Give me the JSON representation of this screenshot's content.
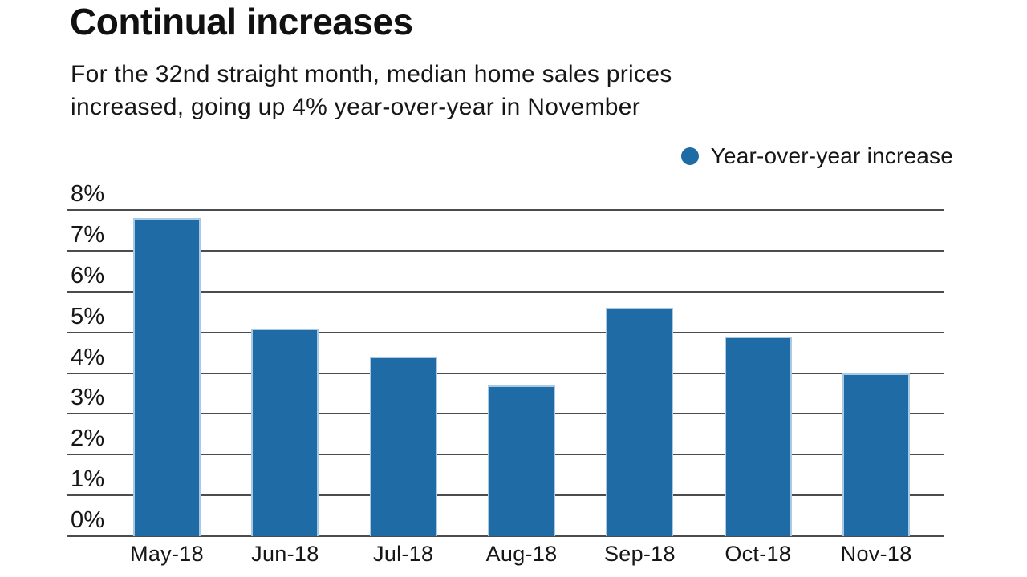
{
  "page": {
    "title": "Continual increases",
    "subtitle_lines": [
      "For the 32nd straight month, median home sales prices",
      "increased, going up 4% year-over-year in November"
    ]
  },
  "legend": {
    "label": "Year-over-year increase",
    "marker": "circle-icon"
  },
  "colors": {
    "bar": "#1e6ba5",
    "bar_edge": "#a9cae2",
    "grid": "#4c4c4c",
    "text": "#161616"
  },
  "chart_data": {
    "type": "bar",
    "title": "Continual increases",
    "subtitle": "For the 32nd straight month, median home sales prices increased, going up 4% year-over-year in November",
    "categories": [
      "May-18",
      "Jun-18",
      "Jul-18",
      "Aug-18",
      "Sep-18",
      "Oct-18",
      "Nov-18"
    ],
    "series": [
      {
        "name": "Year-over-year increase",
        "values": [
          7.8,
          5.1,
          4.4,
          3.7,
          5.6,
          4.9,
          4.0
        ]
      }
    ],
    "xlabel": "",
    "ylabel": "",
    "ylim": [
      0,
      8
    ],
    "ytick_step": 1,
    "yticks": [
      "0%",
      "1%",
      "2%",
      "3%",
      "4%",
      "5%",
      "6%",
      "7%",
      "8%"
    ],
    "ytick_position": "above-gridline-left",
    "grid": true,
    "legend_position": "top-right"
  }
}
